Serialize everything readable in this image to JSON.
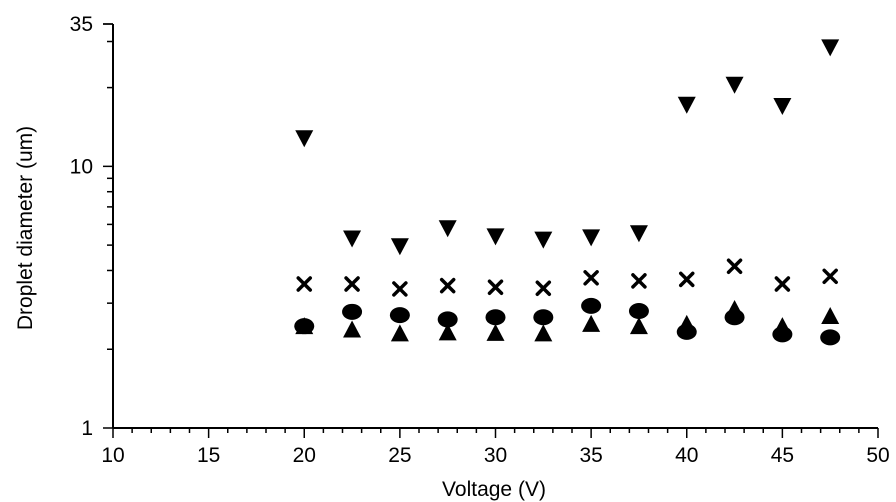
{
  "chart_data": {
    "type": "scatter",
    "title": "",
    "xlabel": "Voltage (V)",
    "ylabel": "Droplet diameter (um)",
    "xlim": [
      10,
      50
    ],
    "ylim": [
      1,
      35
    ],
    "yscale": "log",
    "grid": false,
    "x_ticks": [
      10,
      15,
      20,
      25,
      30,
      35,
      40,
      45,
      50
    ],
    "x_tick_labels": [
      "10",
      "15",
      "20",
      "25",
      "30",
      "35",
      "40",
      "45",
      "50"
    ],
    "y_ticks": [
      1,
      10,
      35
    ],
    "y_tick_labels": [
      "1",
      "10",
      "35"
    ],
    "x": [
      20,
      22.5,
      25,
      27.5,
      30,
      32.5,
      35,
      37.5,
      40,
      42.5,
      45,
      47.5
    ],
    "series": [
      {
        "marker": "triangle-down",
        "values": [
          12.8,
          5.3,
          4.95,
          5.8,
          5.4,
          5.25,
          5.35,
          5.55,
          17.2,
          20.5,
          17.0,
          28.5
        ]
      },
      {
        "marker": "cross",
        "values": [
          3.55,
          3.55,
          3.4,
          3.5,
          3.45,
          3.42,
          3.75,
          3.65,
          3.7,
          4.15,
          3.55,
          3.8
        ]
      },
      {
        "marker": "circle",
        "values": [
          2.45,
          2.78,
          2.7,
          2.6,
          2.65,
          2.65,
          2.93,
          2.8,
          2.33,
          2.65,
          2.28,
          2.22
        ]
      },
      {
        "marker": "triangle-up",
        "values": [
          2.45,
          2.38,
          2.3,
          2.32,
          2.31,
          2.3,
          2.5,
          2.45,
          2.5,
          2.85,
          2.45,
          2.68
        ]
      }
    ]
  }
}
